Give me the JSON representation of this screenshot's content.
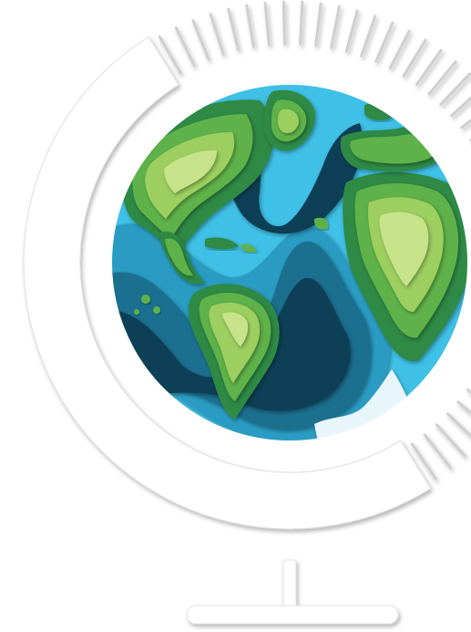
{
  "illustration": {
    "subject": "paper-cut-globe-icon",
    "palette": {
      "deep_ocean": "#0f3f56",
      "mid_ocean": "#1c6f8f",
      "ocean": "#2a9cc3",
      "shallow": "#3fc0e6",
      "ice": "#e8f6fb",
      "land_dark": "#2f8a45",
      "land_mid": "#5eb24a",
      "land_light": "#9ccf5e",
      "land_pale": "#c7e38a",
      "frame": "#ffffff",
      "frame_shadow": "#c9c9c9"
    }
  }
}
